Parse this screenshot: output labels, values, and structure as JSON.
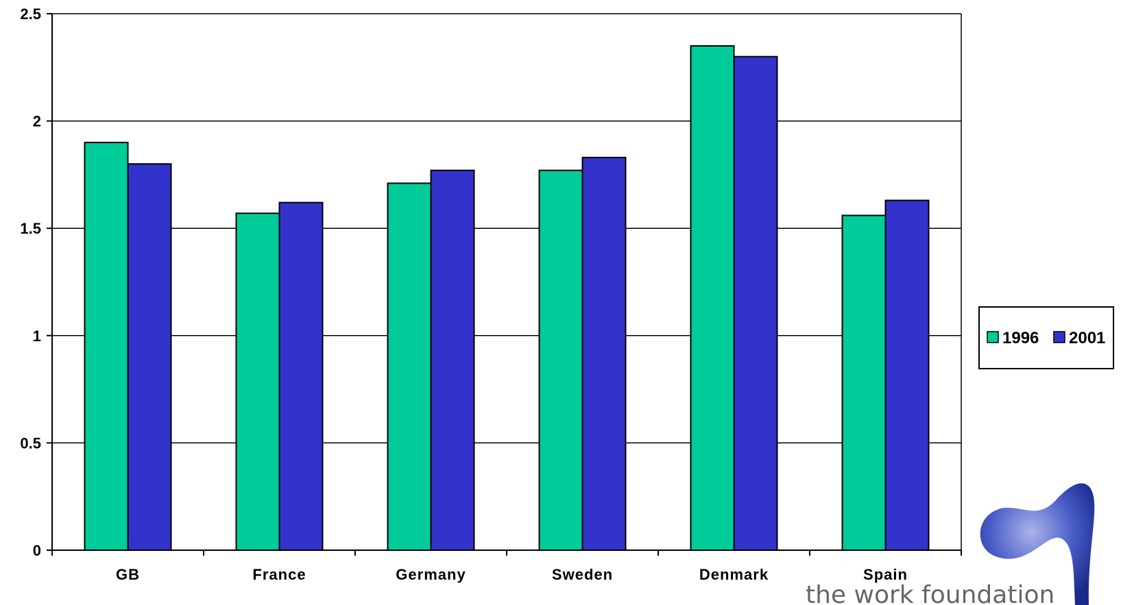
{
  "chart_data": {
    "type": "bar",
    "categories": [
      "GB",
      "France",
      "Germany",
      "Sweden",
      "Denmark",
      "Spain"
    ],
    "series": [
      {
        "name": "1996",
        "values": [
          1.9,
          1.57,
          1.71,
          1.77,
          2.35,
          1.56
        ],
        "color": "#00CC99"
      },
      {
        "name": "2001",
        "values": [
          1.8,
          1.62,
          1.77,
          1.83,
          2.3,
          1.63
        ],
        "color": "#3333CC"
      }
    ],
    "ylim": [
      0,
      2.5
    ],
    "yticks": [
      "0",
      "0.5",
      "1",
      "1.5",
      "2",
      "2.5"
    ],
    "grid": true,
    "legend_position": "right"
  },
  "logo": {
    "text": "the work foundation"
  }
}
